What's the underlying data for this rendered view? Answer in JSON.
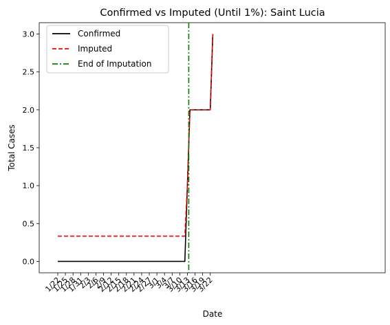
{
  "chart_data": {
    "type": "line",
    "title": "Confirmed vs Imputed (Until 1%): Saint Lucia",
    "xlabel": "Date",
    "ylabel": "Total Cases",
    "x": [
      "1/22",
      "1/23",
      "1/24",
      "1/25",
      "1/26",
      "1/27",
      "1/28",
      "1/29",
      "1/30",
      "1/31",
      "2/1",
      "2/2",
      "2/3",
      "2/4",
      "2/5",
      "2/6",
      "2/7",
      "2/8",
      "2/9",
      "2/10",
      "2/11",
      "2/12",
      "2/13",
      "2/14",
      "2/15",
      "2/16",
      "2/17",
      "2/18",
      "2/19",
      "2/20",
      "2/21",
      "2/22",
      "2/23",
      "2/24",
      "2/25",
      "2/26",
      "2/27",
      "2/28",
      "2/29",
      "3/1",
      "3/2",
      "3/3",
      "3/4",
      "3/5",
      "3/6",
      "3/7",
      "3/8",
      "3/9",
      "3/10",
      "3/11",
      "3/12",
      "3/13",
      "3/14",
      "3/15",
      "3/16",
      "3/17",
      "3/18",
      "3/19",
      "3/20",
      "3/21",
      "3/22",
      "3/23"
    ],
    "x_ticks": [
      "1/22",
      "1/25",
      "1/28",
      "1/31",
      "2/3",
      "2/6",
      "2/9",
      "2/12",
      "2/15",
      "2/18",
      "2/21",
      "2/24",
      "2/27",
      "3/1",
      "3/4",
      "3/7",
      "3/10",
      "3/13",
      "3/16",
      "3/19",
      "3/22"
    ],
    "y_ticks": [
      "0.0",
      "0.5",
      "1.0",
      "1.5",
      "2.0",
      "2.5",
      "3.0"
    ],
    "ylim": [
      -0.15,
      3.15
    ],
    "series": [
      {
        "name": "Confirmed",
        "color": "#000000",
        "style": "solid",
        "values": [
          0,
          0,
          0,
          0,
          0,
          0,
          0,
          0,
          0,
          0,
          0,
          0,
          0,
          0,
          0,
          0,
          0,
          0,
          0,
          0,
          0,
          0,
          0,
          0,
          0,
          0,
          0,
          0,
          0,
          0,
          0,
          0,
          0,
          0,
          0,
          0,
          0,
          0,
          0,
          0,
          0,
          0,
          0,
          0,
          0,
          0,
          0,
          0,
          0,
          0,
          0,
          1,
          2,
          2,
          2,
          2,
          2,
          2,
          2,
          2,
          2,
          3
        ]
      },
      {
        "name": "Imputed",
        "color": "#ff0000",
        "style": "dashed",
        "values": [
          0.333,
          0.333,
          0.333,
          0.333,
          0.333,
          0.333,
          0.333,
          0.333,
          0.333,
          0.333,
          0.333,
          0.333,
          0.333,
          0.333,
          0.333,
          0.333,
          0.333,
          0.333,
          0.333,
          0.333,
          0.333,
          0.333,
          0.333,
          0.333,
          0.333,
          0.333,
          0.333,
          0.333,
          0.333,
          0.333,
          0.333,
          0.333,
          0.333,
          0.333,
          0.333,
          0.333,
          0.333,
          0.333,
          0.333,
          0.333,
          0.333,
          0.333,
          0.333,
          0.333,
          0.333,
          0.333,
          0.333,
          0.333,
          0.333,
          0.333,
          0.333,
          1,
          2,
          2,
          2,
          2,
          2,
          2,
          2,
          2,
          2,
          3
        ]
      }
    ],
    "vline": {
      "name": "End of Imputation",
      "x": "3/13",
      "color": "#008000",
      "style": "dashdot"
    },
    "legend": "upper-left",
    "grid": false
  }
}
